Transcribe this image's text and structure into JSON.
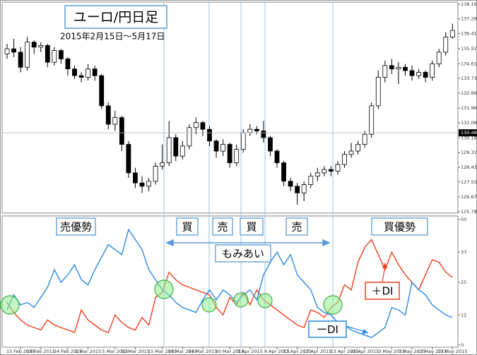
{
  "chart_data": [
    {
      "type": "candlestick",
      "title": "ユーロ/円日足",
      "subtitle": "2015年2月15日～5月17日",
      "open": [
        135.2,
        135.5,
        135.3,
        134.4,
        135.9,
        135.6,
        135.7,
        134.7,
        135.4,
        134.9,
        134.3,
        133.9,
        133.8,
        134.3,
        133.9,
        132.1,
        131.0,
        131.4,
        129.8,
        128.1,
        127.5,
        127.3,
        127.6,
        128.5,
        128.7,
        130.2,
        129.1,
        129.7,
        130.8,
        131.1,
        130.7,
        130.0,
        129.4,
        129.8,
        128.7,
        129.5,
        130.5,
        130.7,
        130.6,
        130.2,
        129.4,
        128.7,
        127.6,
        127.3,
        126.9,
        127.4,
        127.9,
        128.1,
        128.3,
        128.2,
        128.6,
        129.2,
        129.4,
        129.8,
        130.4,
        132.1,
        133.8,
        134.5,
        134.3,
        134.4,
        134.2,
        133.9,
        134.1,
        133.8,
        134.6,
        135.3,
        136.2
      ],
      "high": [
        135.8,
        136.1,
        135.6,
        136.2,
        136.0,
        135.9,
        135.8,
        135.6,
        135.5,
        135.0,
        134.5,
        134.1,
        134.6,
        134.5,
        134.0,
        132.3,
        131.8,
        131.5,
        130.0,
        128.4,
        127.9,
        127.8,
        128.7,
        129.8,
        131.2,
        130.4,
        130.0,
        131.0,
        131.4,
        131.2,
        130.9,
        130.1,
        130.1,
        129.9,
        129.8,
        130.7,
        131.0,
        130.9,
        131.2,
        130.3,
        129.5,
        128.8,
        127.8,
        127.5,
        127.6,
        128.1,
        128.4,
        128.5,
        128.5,
        128.8,
        129.4,
        129.9,
        130.0,
        130.6,
        132.3,
        134.2,
        134.8,
        134.9,
        134.7,
        134.6,
        134.5,
        134.3,
        134.2,
        134.8,
        135.5,
        136.5,
        137.0
      ],
      "low": [
        134.9,
        135.0,
        134.1,
        134.2,
        135.2,
        135.3,
        134.4,
        134.5,
        134.6,
        133.9,
        133.7,
        133.5,
        133.6,
        133.6,
        131.9,
        130.7,
        130.6,
        129.4,
        127.8,
        127.2,
        126.9,
        127.0,
        127.4,
        128.3,
        128.5,
        128.8,
        128.9,
        129.5,
        130.4,
        130.3,
        129.7,
        129.0,
        129.1,
        128.4,
        128.5,
        129.3,
        130.3,
        130.4,
        129.9,
        129.1,
        128.4,
        127.3,
        127.0,
        126.2,
        126.4,
        127.2,
        127.6,
        127.9,
        127.9,
        128.0,
        128.4,
        129.0,
        129.2,
        129.6,
        130.2,
        131.9,
        133.5,
        134.0,
        133.4,
        133.9,
        133.6,
        133.7,
        133.5,
        133.6,
        134.4,
        135.1,
        136.1
      ],
      "close": [
        135.5,
        135.3,
        134.4,
        135.9,
        135.6,
        135.7,
        134.7,
        135.4,
        134.9,
        134.3,
        133.9,
        133.8,
        134.3,
        133.9,
        132.1,
        131.0,
        131.4,
        129.8,
        128.1,
        127.5,
        127.3,
        127.6,
        128.5,
        128.7,
        130.2,
        129.1,
        129.7,
        130.8,
        131.1,
        130.7,
        130.0,
        129.4,
        129.8,
        128.7,
        129.5,
        130.5,
        130.7,
        130.6,
        130.2,
        129.4,
        128.7,
        127.6,
        127.3,
        126.9,
        127.4,
        127.9,
        128.1,
        128.3,
        128.2,
        128.6,
        129.2,
        129.4,
        129.8,
        130.4,
        132.1,
        133.8,
        134.5,
        134.3,
        134.4,
        134.2,
        133.9,
        134.1,
        133.8,
        134.6,
        135.3,
        136.2,
        136.6
      ],
      "up_color": "#ffffff",
      "down_color": "#000000",
      "ylim": [
        125.78,
        138.16
      ],
      "yticks": [
        {
          "value": 138.16,
          "label": "138.160"
        },
        {
          "value": 137.29,
          "label": "137.290"
        },
        136.415,
        {
          "value": 135.51,
          "label": "135.510"
        },
        {
          "value": 134.61,
          "label": "134.610"
        },
        133.735,
        {
          "value": 132.86,
          "label": "132.860"
        },
        {
          "value": 131.96,
          "label": "131.960"
        },
        131.085,
        130.185,
        {
          "value": 129.31,
          "label": "129.310"
        },
        128.435,
        127.555,
        {
          "value": 126.67,
          "label": "126.670"
        },
        {
          "value": 125.78,
          "label": "125.780"
        }
      ],
      "last_price": 130.488
    },
    {
      "type": "line",
      "categories": [
        null,
        null,
        "15 Feb 2015",
        null,
        null,
        "19 Feb 2015",
        null,
        null,
        null,
        "24 Feb 2015",
        null,
        null,
        "1 Mar 2015",
        null,
        null,
        null,
        "5 Mar 2015",
        null,
        null,
        "10 Mar 2015",
        null,
        null,
        null,
        "15 Mar 2015",
        null,
        null,
        "19 Mar 2015",
        null,
        null,
        "24 Mar 2015",
        null,
        null,
        null,
        "30 Mar 2015",
        null,
        null,
        "3 Apr 2015",
        null,
        null,
        null,
        "8 Apr 2015",
        null,
        null,
        "13 Apr 2015",
        null,
        null,
        "17 Apr 2015",
        null,
        null,
        null,
        "23 Apr 2015",
        null,
        null,
        "28 Apr 2015",
        null,
        null,
        null,
        "3 May 2015",
        null,
        null,
        "7 May 2015",
        null,
        null,
        "12 May 2015",
        null,
        null,
        "17 May 2015"
      ],
      "series": [
        {
          "name": "＋DI",
          "color": "#e8401c",
          "values": [
            17,
            13,
            10,
            8,
            7,
            6,
            10,
            8,
            7,
            6,
            5,
            14,
            10,
            8,
            6,
            5,
            12,
            9,
            7,
            6,
            11,
            8,
            19,
            21,
            29,
            26,
            24,
            23,
            22,
            21,
            20,
            15,
            12,
            19,
            16,
            21,
            16,
            22,
            18,
            16,
            14,
            12,
            10,
            8,
            7,
            14,
            13,
            11,
            15,
            17,
            24,
            22,
            33,
            39,
            42,
            36,
            30,
            37,
            32,
            28,
            25,
            22,
            28,
            34,
            33,
            29,
            27
          ]
        },
        {
          "name": "ーDI",
          "color": "#2a8ae0",
          "values": [
            14,
            20,
            16,
            17,
            15,
            19,
            23,
            30,
            25,
            28,
            32,
            26,
            24,
            30,
            35,
            40,
            38,
            36,
            46,
            42,
            38,
            30,
            26,
            22,
            20,
            17,
            15,
            14,
            13,
            18,
            22,
            18,
            22,
            20,
            17,
            20,
            22,
            18,
            28,
            33,
            37,
            32,
            36,
            28,
            25,
            22,
            15,
            13,
            12,
            9,
            8,
            6,
            5,
            4,
            3,
            5,
            7,
            15,
            14,
            12,
            25,
            22,
            20,
            16,
            14,
            12,
            11
          ]
        }
      ],
      "ylim": [
        0,
        50
      ],
      "yticks": [
        50,
        37,
        25,
        12,
        0
      ],
      "annotations": [
        "売優勢",
        "買",
        "売",
        "買",
        "売",
        "買優勢",
        "もみあい"
      ]
    }
  ]
}
